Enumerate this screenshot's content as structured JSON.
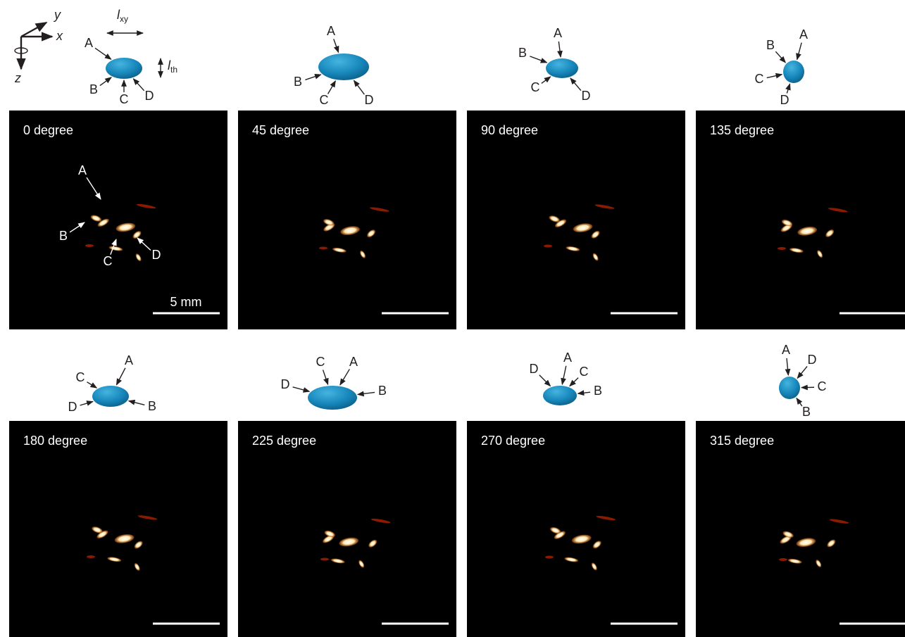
{
  "axes": {
    "x": "x",
    "y": "y",
    "z": "z",
    "lxy": {
      "main": "l",
      "sub": "xy"
    },
    "lth": {
      "main": "l",
      "sub": "th"
    }
  },
  "panels": [
    {
      "label": "0 degree",
      "markers": [
        "A",
        "B",
        "C",
        "D"
      ],
      "image_markers": [
        "A",
        "B",
        "C",
        "D"
      ],
      "scale_label": "5 mm"
    },
    {
      "label": "45 degree",
      "markers": [
        "A",
        "B",
        "C",
        "D"
      ]
    },
    {
      "label": "90 degree",
      "markers": [
        "A",
        "B",
        "C",
        "D"
      ]
    },
    {
      "label": "135 degree",
      "markers": [
        "A",
        "B",
        "C",
        "D"
      ]
    },
    {
      "label": "180 degree",
      "markers": [
        "A",
        "B",
        "C",
        "D"
      ]
    },
    {
      "label": "225 degree",
      "markers": [
        "A",
        "B",
        "C",
        "D"
      ]
    },
    {
      "label": "270 degree",
      "markers": [
        "A",
        "B",
        "C",
        "D"
      ]
    },
    {
      "label": "315 degree",
      "markers": [
        "A",
        "B",
        "C",
        "D"
      ]
    }
  ]
}
